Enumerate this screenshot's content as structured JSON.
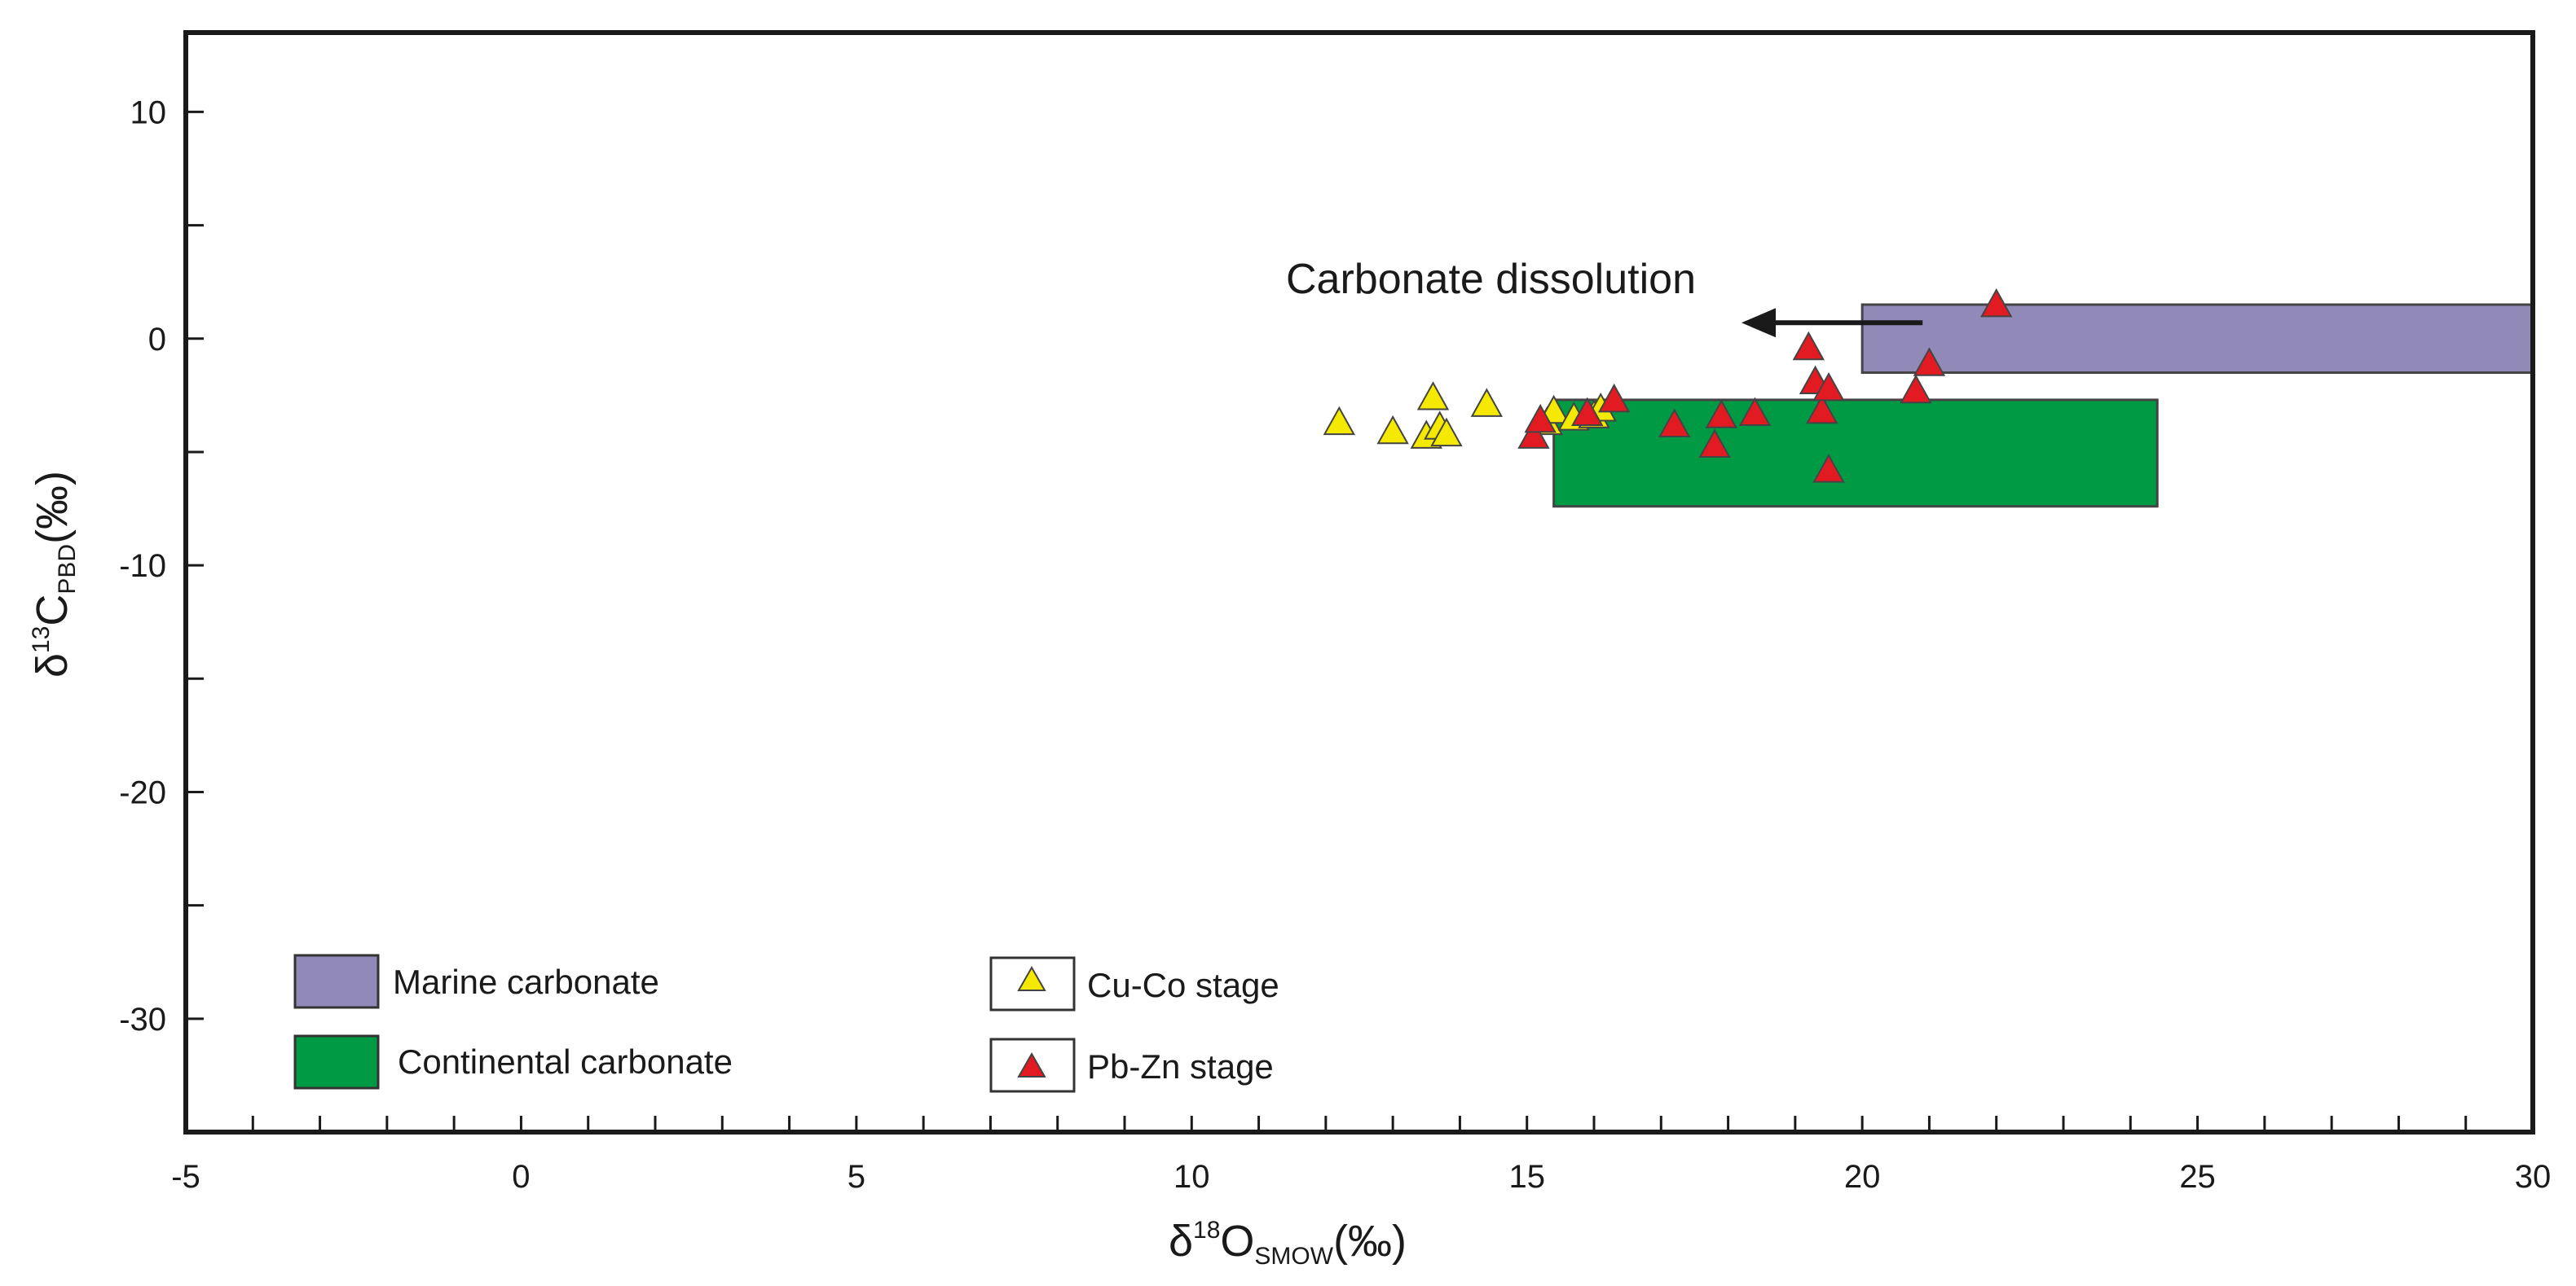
{
  "chart_data": {
    "type": "scatter",
    "title": "",
    "xlabel": {
      "prefix": "δ",
      "sup": "18",
      "main": "O",
      "sub": "SMOW",
      "suffix": "(‰)"
    },
    "ylabel": {
      "prefix": "δ",
      "sup": "13",
      "main": "C",
      "sub": "PBD",
      "suffix": "(‰)"
    },
    "xlim": [
      -5,
      30
    ],
    "ylim": [
      -35,
      13.5
    ],
    "xticks": [
      -5,
      0,
      5,
      10,
      15,
      20,
      25,
      30
    ],
    "xtick_labels": [
      "-5",
      "0",
      "5",
      "10",
      "15",
      "20",
      "25",
      "30"
    ],
    "yticks": [
      10,
      0,
      -10,
      -20,
      -30
    ],
    "ytick_labels": [
      "10",
      "0",
      "-10",
      "-20",
      "-30"
    ],
    "x_minor_step": 1,
    "y_minor_step": 5,
    "grid": false,
    "legend_position": "bottom-left",
    "regions": [
      {
        "name": "Marine carbonate",
        "x": [
          20,
          30
        ],
        "y": [
          -1.5,
          1.5
        ],
        "color": "#9189b8"
      },
      {
        "name": "Continental carbonate",
        "x": [
          15.4,
          24.4
        ],
        "y": [
          -7.4,
          -2.7
        ],
        "color": "#009944"
      }
    ],
    "series": [
      {
        "name": "Cu-Co stage",
        "marker": "triangle",
        "color": "#f5e900",
        "points": [
          [
            12.2,
            -3.7
          ],
          [
            13.0,
            -4.1
          ],
          [
            13.5,
            -4.3
          ],
          [
            13.6,
            -2.6
          ],
          [
            13.7,
            -3.9
          ],
          [
            13.8,
            -4.2
          ],
          [
            14.4,
            -2.9
          ],
          [
            15.3,
            -3.7
          ],
          [
            15.4,
            -3.2
          ],
          [
            15.7,
            -3.5
          ],
          [
            16.0,
            -3.4
          ],
          [
            16.1,
            -3.1
          ]
        ]
      },
      {
        "name": "Pb-Zn stage",
        "marker": "triangle",
        "color": "#e21b23",
        "points": [
          [
            15.1,
            -4.3
          ],
          [
            15.2,
            -3.6
          ],
          [
            15.9,
            -3.3
          ],
          [
            16.3,
            -2.7
          ],
          [
            17.2,
            -3.8
          ],
          [
            17.8,
            -4.7
          ],
          [
            17.9,
            -3.4
          ],
          [
            18.4,
            -3.3
          ],
          [
            19.2,
            -0.4
          ],
          [
            19.3,
            -1.9
          ],
          [
            19.4,
            -3.2
          ],
          [
            19.5,
            -2.2
          ],
          [
            19.5,
            -5.8
          ],
          [
            20.8,
            -2.3
          ],
          [
            21.0,
            -1.1
          ],
          [
            22.0,
            1.5
          ]
        ]
      }
    ],
    "annotations": [
      {
        "text": "Carbonate dissolution",
        "arrow_from": [
          20.9,
          0.7
        ],
        "arrow_to": [
          18.2,
          0.7
        ]
      }
    ]
  },
  "legend": {
    "items": [
      {
        "label": "Marine carbonate",
        "kind": "box",
        "color": "#9189b8"
      },
      {
        "label": "Continental carbonate",
        "kind": "box",
        "color": "#009944"
      },
      {
        "label": "Cu-Co stage",
        "kind": "triangle",
        "color": "#f5e900"
      },
      {
        "label": "Pb-Zn stage",
        "kind": "triangle",
        "color": "#e21b23"
      }
    ]
  }
}
